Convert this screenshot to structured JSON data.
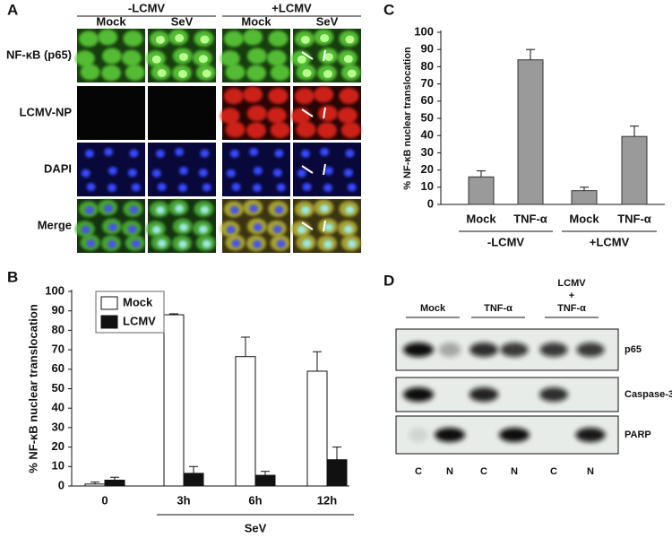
{
  "panel_a": {
    "panel": "A",
    "conditions": [
      {
        "label": "-LCMV",
        "columns": [
          "Mock",
          "SeV"
        ]
      },
      {
        "label": "+LCMV",
        "columns": [
          "Mock",
          "SeV"
        ]
      }
    ],
    "rows": [
      "NF-κB (p65)",
      "LCMV-NP",
      "DAPI",
      "Merge"
    ]
  },
  "chart_data": [
    {
      "type": "bar",
      "panel": "B",
      "ylabel": "% NF-κB nuclear translocation",
      "categories": [
        "0",
        "3h",
        "6h",
        "12h"
      ],
      "group_label": "SeV",
      "series": [
        {
          "name": "Mock",
          "color": "#ffffff",
          "values": [
            1,
            88,
            66.5,
            59
          ],
          "errors": [
            1,
            0.5,
            10,
            10
          ]
        },
        {
          "name": "LCMV",
          "color": "#111111",
          "values": [
            3,
            6.5,
            5.5,
            13.5
          ],
          "errors": [
            1.5,
            3.5,
            2,
            6.5
          ]
        }
      ],
      "ylim": [
        0,
        100
      ],
      "yticks": [
        0,
        10,
        20,
        30,
        40,
        50,
        60,
        70,
        80,
        90,
        100
      ],
      "legend": "top-left"
    },
    {
      "type": "bar",
      "panel": "C",
      "ylabel": "% NF-κB nuclear translocation",
      "categories": [
        "Mock",
        "TNF-α",
        "Mock",
        "TNF-α"
      ],
      "group_labels": [
        "-LCMV",
        "+LCMV"
      ],
      "values": [
        16,
        84,
        8,
        39.5
      ],
      "errors": [
        3.5,
        6,
        2,
        6
      ],
      "color": "#9a9a9a",
      "ylim": [
        0,
        100
      ],
      "yticks": [
        0,
        10,
        20,
        30,
        40,
        50,
        60,
        70,
        80,
        90,
        100
      ]
    }
  ],
  "panel_d": {
    "panel": "D",
    "treatments": [
      [
        "Mock"
      ],
      [
        "TNF-α"
      ],
      [
        "LCMV",
        "+",
        "TNF-α"
      ]
    ],
    "proteins": [
      "p65",
      "Caspase-3",
      "PARP"
    ],
    "lanes": [
      "C",
      "N",
      "C",
      "N",
      "C",
      "N"
    ]
  }
}
